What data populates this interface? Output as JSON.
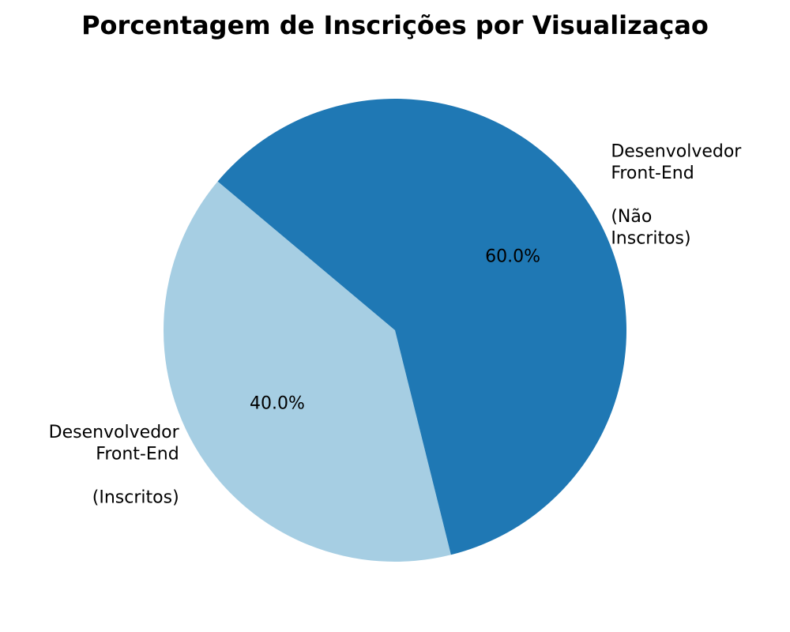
{
  "chart_data": {
    "type": "pie",
    "title": "Porcentagem de Inscrições por Visualizaçao",
    "slices": [
      {
        "label_lines": [
          "Desenvolvedor",
          "Front-End",
          "",
          "(Inscritos)"
        ],
        "value": 40.0,
        "pct_label": "40.0%",
        "color": "#a6cee3"
      },
      {
        "label_lines": [
          "Desenvolvedor",
          "Front-End",
          "",
          "(Não",
          "Inscritos)"
        ],
        "value": 60.0,
        "pct_label": "60.0%",
        "color": "#1f78b4"
      }
    ],
    "start_angle_deg": 140,
    "direction": "counterclockwise"
  }
}
